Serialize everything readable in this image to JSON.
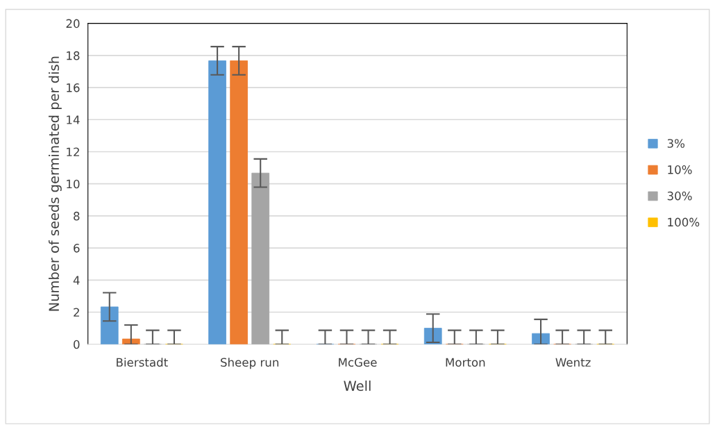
{
  "chart_data": {
    "type": "bar",
    "xlabel": "Well",
    "ylabel": "Number of seeds germinated per dish",
    "categories": [
      "Bierstadt",
      "Sheep run",
      "McGee",
      "Morton",
      "Wentz"
    ],
    "series": [
      {
        "name": "3%",
        "color": "#5b9bd5",
        "values": [
          2.33,
          17.67,
          0,
          1.0,
          0.67
        ],
        "errors": [
          0.88,
          0.88,
          [
            0,
            0.87
          ],
          0.88,
          [
            0,
            1.55
          ]
        ]
      },
      {
        "name": "10%",
        "color": "#ed7d31",
        "values": [
          0.33,
          17.67,
          0,
          0,
          0
        ],
        "errors": [
          [
            0,
            1.2
          ],
          0.88,
          [
            0,
            0.87
          ],
          [
            0,
            0.87
          ],
          [
            0,
            0.87
          ]
        ]
      },
      {
        "name": "30%",
        "color": "#a5a5a5",
        "values": [
          0,
          10.67,
          0,
          0,
          0
        ],
        "errors": [
          [
            0,
            0.87
          ],
          0.88,
          [
            0,
            0.87
          ],
          [
            0,
            0.87
          ],
          [
            0,
            0.87
          ]
        ]
      },
      {
        "name": "100%",
        "color": "#ffc000",
        "values": [
          0,
          0,
          0,
          0,
          0
        ],
        "errors": [
          [
            0,
            0.87
          ],
          [
            0,
            0.87
          ],
          [
            0,
            0.87
          ],
          [
            0,
            0.87
          ],
          [
            0,
            0.87
          ]
        ]
      }
    ],
    "ylim": [
      0,
      20
    ],
    "yticks": [
      0,
      2,
      4,
      6,
      8,
      10,
      12,
      14,
      16,
      18,
      20
    ],
    "grid": "y",
    "legend": "right"
  }
}
